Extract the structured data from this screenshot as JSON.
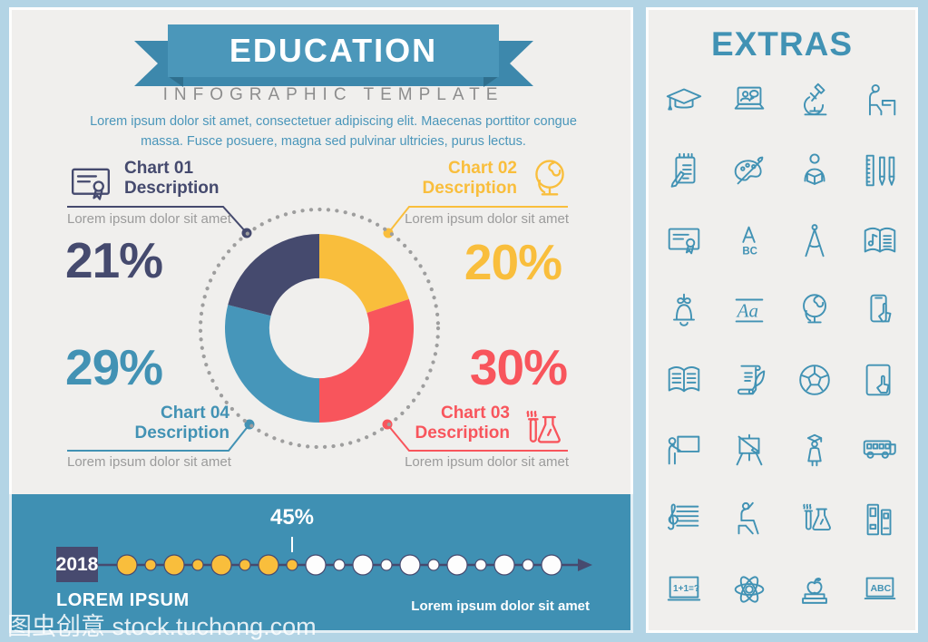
{
  "watermark": "图虫创意 stock.tuchong.com",
  "banner": {
    "title": "EDUCATION",
    "subtitle": "INFOGRAPHIC TEMPLATE",
    "description_line1": "Lorem ipsum dolor sit amet, consectetuer adipiscing elit. Maecenas porttitor congue",
    "description_line2": "massa. Fusce posuere, magna sed pulvinar ultricies, purus lectus."
  },
  "chart_data": {
    "type": "pie",
    "title": "Education donut chart",
    "start_angle_deg": 0,
    "direction": "clockwise",
    "inner_radius_ratio": 0.53,
    "segments": [
      {
        "label": "Chart 02 Description",
        "value": 20,
        "color": "#f9be3c"
      },
      {
        "label": "Chart 03 Description",
        "value": 30,
        "color": "#f8555c"
      },
      {
        "label": "Chart 04 Description",
        "value": 29,
        "color": "#4696ba"
      },
      {
        "label": "Chart 01 Description",
        "value": 21,
        "color": "#454a6e"
      }
    ]
  },
  "chart_labels": {
    "c1": {
      "title_line1": "Chart 01",
      "title_line2": "Description",
      "caption": "Lorem ipsum dolor sit amet",
      "value": "21%",
      "color": "#454a6e",
      "icon": "certificate"
    },
    "c2": {
      "title_line1": "Chart 02",
      "title_line2": "Description",
      "caption": "Lorem ipsum dolor sit amet",
      "value": "20%",
      "color": "#f9be3c",
      "icon": "globe"
    },
    "c3": {
      "title_line1": "Chart 03",
      "title_line2": "Description",
      "caption": "Lorem ipsum dolor sit amet",
      "value": "30%",
      "color": "#f8555c",
      "icon": "chemistry"
    },
    "c4": {
      "title_line1": "Chart 04",
      "title_line2": "Description",
      "caption": "Lorem ipsum dolor sit amet",
      "value": "29%",
      "color": "#4292b4",
      "icon": null
    }
  },
  "timeline": {
    "year": "2018",
    "marker_label": "45%",
    "marker_index": 7,
    "left_label": "LOREM IPSUM",
    "right_label": "Lorem ipsum dolor sit amet",
    "colors": {
      "band": "#3f90b3",
      "line": "#474a6f",
      "yellow_dot": "#f9be3c",
      "white_dot": "#fdfdfd"
    },
    "dots": [
      {
        "size": "large",
        "color": "yellow"
      },
      {
        "size": "small",
        "color": "yellow"
      },
      {
        "size": "large",
        "color": "yellow"
      },
      {
        "size": "small",
        "color": "yellow"
      },
      {
        "size": "large",
        "color": "yellow"
      },
      {
        "size": "small",
        "color": "yellow"
      },
      {
        "size": "large",
        "color": "yellow"
      },
      {
        "size": "small",
        "color": "yellow"
      },
      {
        "size": "large",
        "color": "white"
      },
      {
        "size": "small",
        "color": "white"
      },
      {
        "size": "large",
        "color": "white"
      },
      {
        "size": "small",
        "color": "white"
      },
      {
        "size": "large",
        "color": "white"
      },
      {
        "size": "small",
        "color": "white"
      },
      {
        "size": "large",
        "color": "white"
      },
      {
        "size": "small",
        "color": "white"
      },
      {
        "size": "large",
        "color": "white"
      },
      {
        "size": "small",
        "color": "white"
      },
      {
        "size": "large",
        "color": "white"
      }
    ]
  },
  "extras": {
    "title": "EXTRAS",
    "icon_color": "#4192b4",
    "icons": [
      "graduation-cap",
      "online-class",
      "microscope",
      "student-desk",
      "notepad",
      "paint-palette",
      "reading-person",
      "ruler-pens",
      "certificate",
      "alphabet",
      "compass",
      "music-book",
      "school-bell",
      "handwriting",
      "globe",
      "phone-touch",
      "open-book",
      "scroll-quill",
      "soccer-ball",
      "tablet-touch",
      "teacher-board",
      "easel",
      "graduate",
      "school-bus",
      "music-clef",
      "raising-hand",
      "chemistry",
      "book-binders",
      "math-board",
      "atom",
      "apple-books",
      "abc-board"
    ]
  }
}
